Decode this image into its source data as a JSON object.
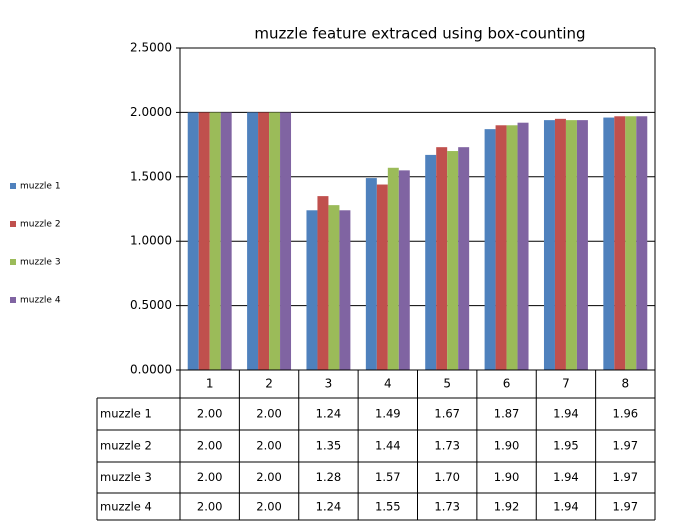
{
  "chart_data": {
    "type": "bar",
    "title": "muzzle feature extraced using box-counting",
    "categories": [
      "1",
      "2",
      "3",
      "4",
      "5",
      "6",
      "7",
      "8"
    ],
    "series": [
      {
        "name": "muzzle 1",
        "color": "#4f81bd",
        "values": [
          2.0,
          2.0,
          1.24,
          1.49,
          1.67,
          1.87,
          1.94,
          1.96
        ],
        "value_labels": [
          "2.00",
          "2.00",
          "1.24",
          "1.49",
          "1.67",
          "1.87",
          "1.94",
          "1.96"
        ]
      },
      {
        "name": "muzzle 2",
        "color": "#c0504d",
        "values": [
          2.0,
          2.0,
          1.35,
          1.44,
          1.73,
          1.9,
          1.95,
          1.97
        ],
        "value_labels": [
          "2.00",
          "2.00",
          "1.35",
          "1.44",
          "1.73",
          "1.90",
          "1.95",
          "1.97"
        ]
      },
      {
        "name": "muzzle 3",
        "color": "#9bbb59",
        "values": [
          2.0,
          2.0,
          1.28,
          1.57,
          1.7,
          1.9,
          1.94,
          1.97
        ],
        "value_labels": [
          "2.00",
          "2.00",
          "1.28",
          "1.57",
          "1.70",
          "1.90",
          "1.94",
          "1.97"
        ]
      },
      {
        "name": "muzzle 4",
        "color": "#8064a2",
        "values": [
          2.0,
          2.0,
          1.24,
          1.55,
          1.73,
          1.92,
          1.94,
          1.97
        ],
        "value_labels": [
          "2.00",
          "2.00",
          "1.24",
          "1.55",
          "1.73",
          "1.92",
          "1.94",
          "1.97"
        ]
      }
    ],
    "ylim": [
      0,
      2.5
    ],
    "yticks": [
      {
        "value": 0,
        "label": "0.0000"
      },
      {
        "value": 0.5,
        "label": "0.5000"
      },
      {
        "value": 1,
        "label": "1.0000"
      },
      {
        "value": 1.5,
        "label": "1.5000"
      },
      {
        "value": 2,
        "label": "2.0000"
      },
      {
        "value": 2.5,
        "label": "2.5000"
      }
    ],
    "grid": true,
    "legend": "left"
  }
}
